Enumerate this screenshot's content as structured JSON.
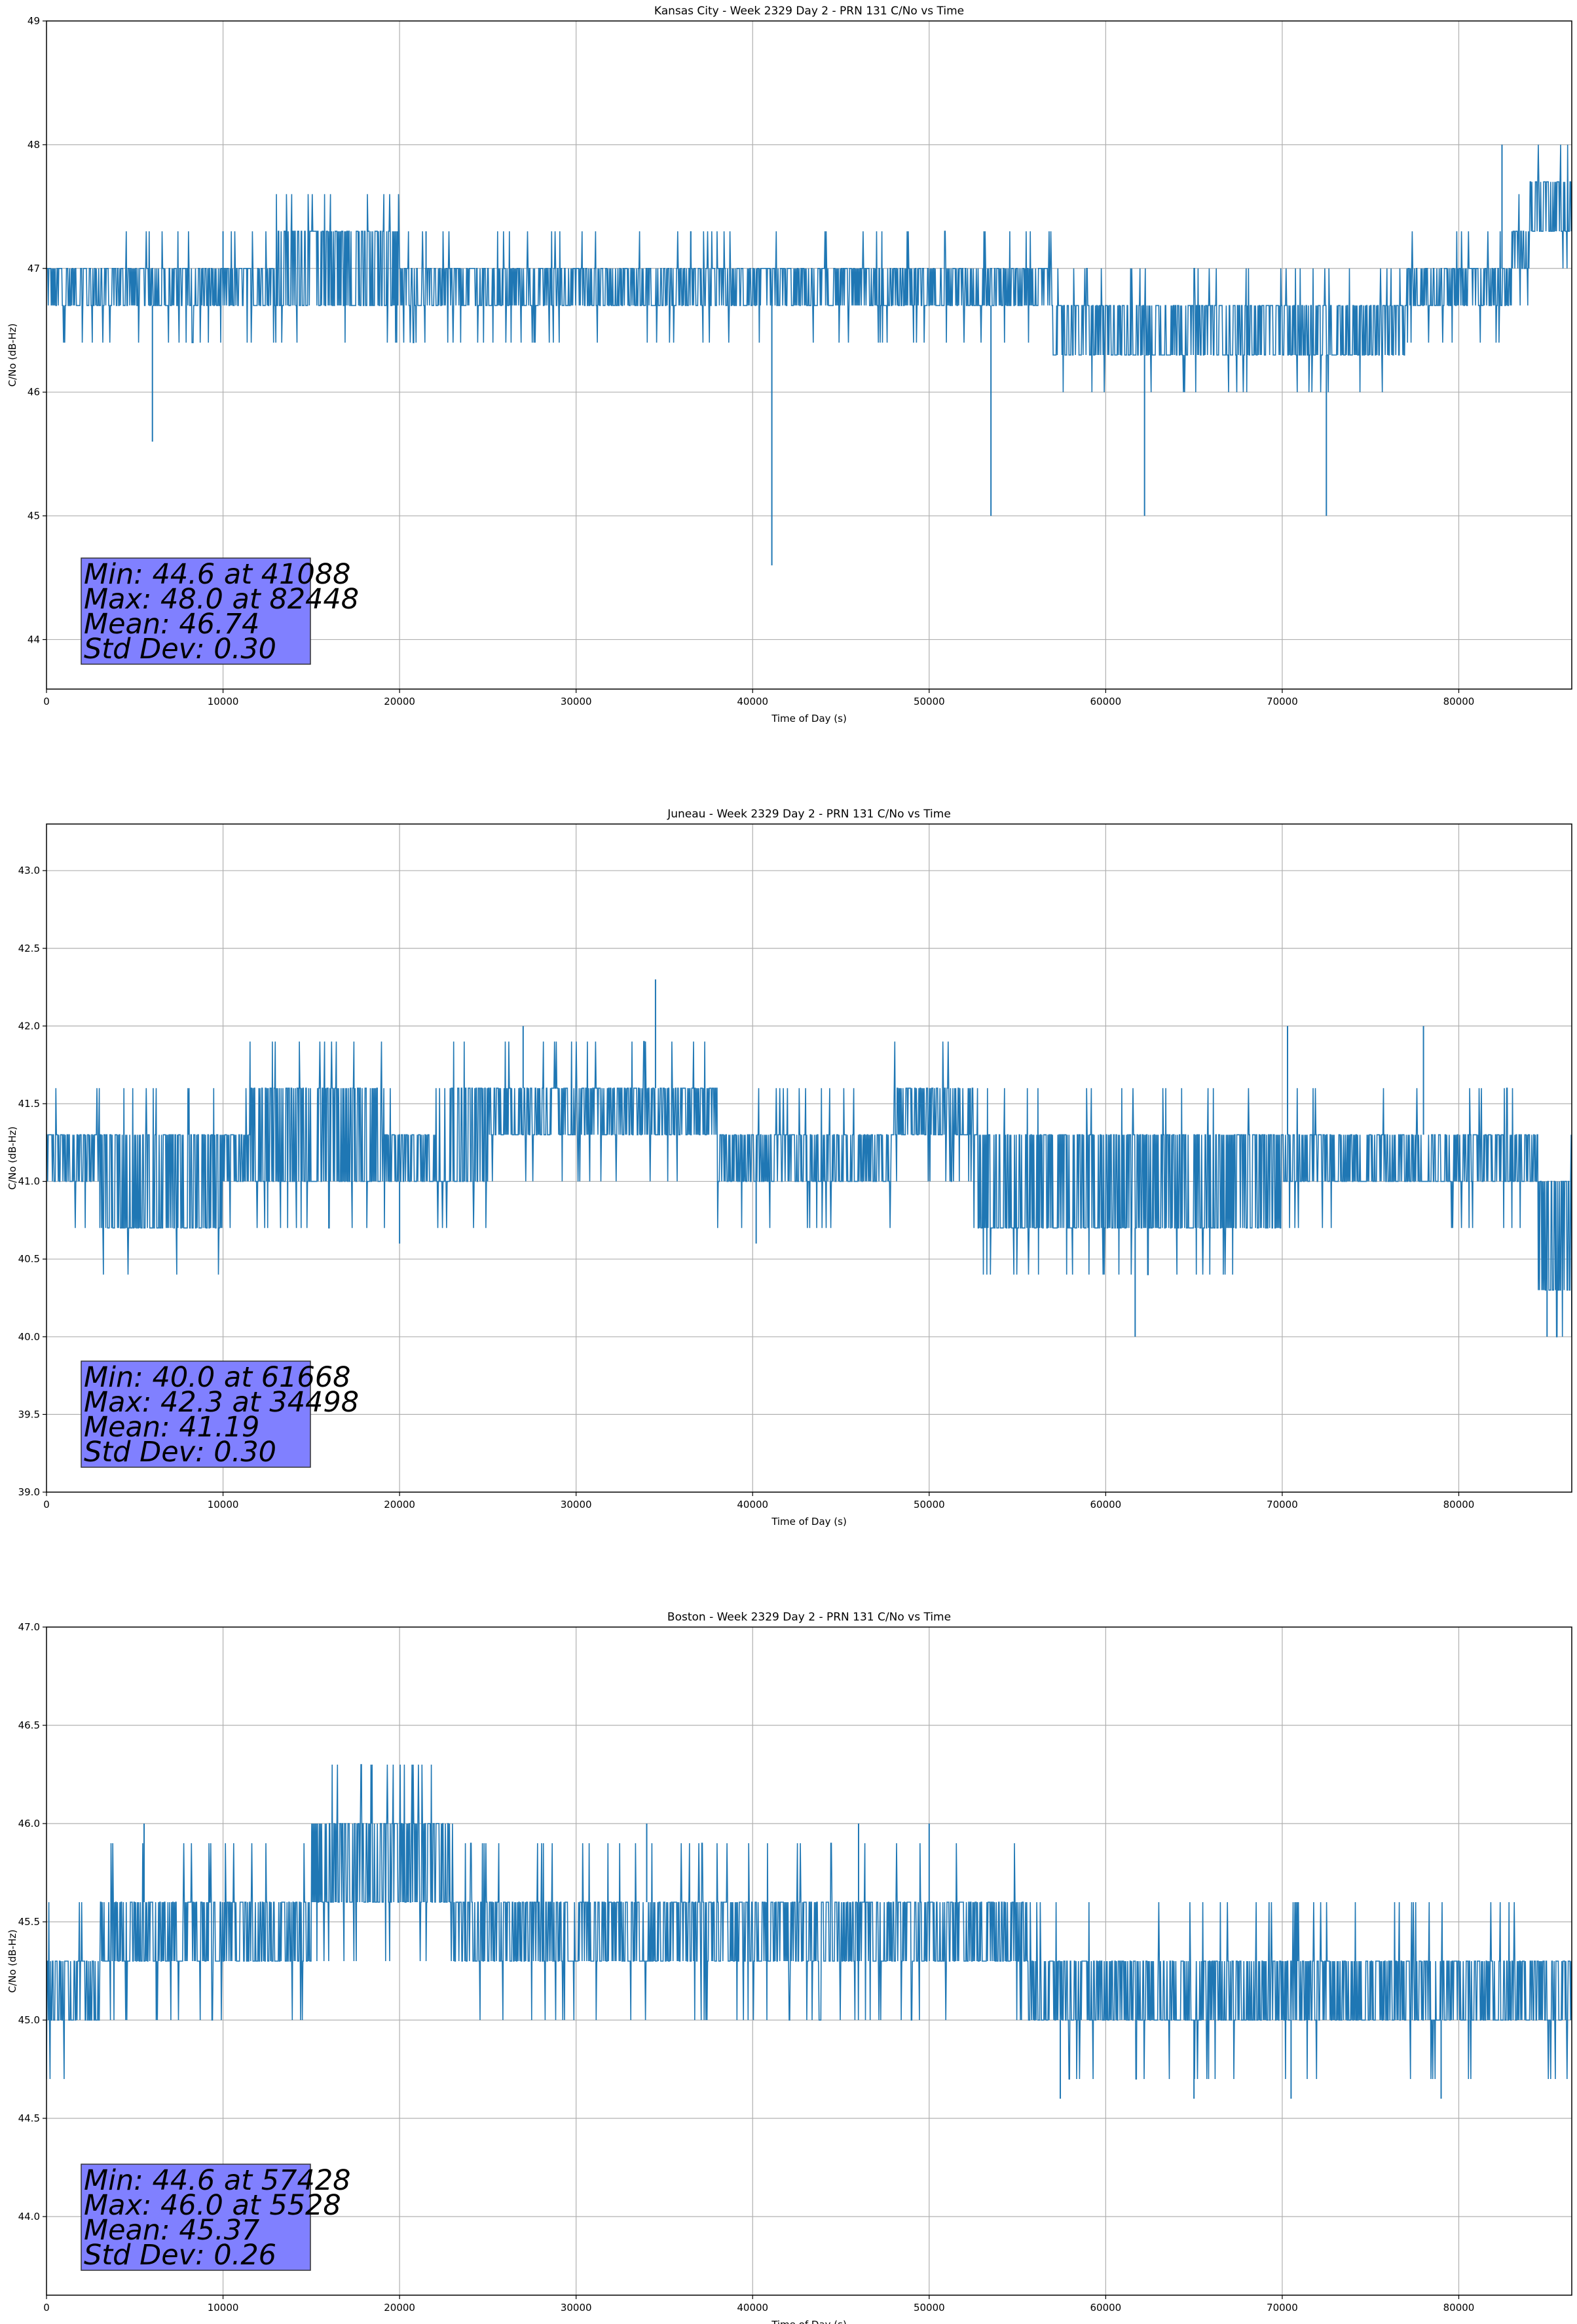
{
  "chart_data": [
    {
      "type": "line",
      "title": "Kansas City - Week 2329 Day 2 - PRN 131 C/No vs Time",
      "xlabel": "Time of Day (s)",
      "ylabel": "C/No (dB-Hz)",
      "xlim": [
        0,
        86400
      ],
      "ylim": [
        43.6,
        49
      ],
      "xticks": [
        0,
        10000,
        20000,
        30000,
        40000,
        50000,
        60000,
        70000,
        80000
      ],
      "yticks": [
        44,
        45,
        46,
        47,
        48,
        49
      ],
      "ytick_labels": [
        "44",
        "45",
        "46",
        "47",
        "48",
        "49"
      ],
      "grid": true,
      "line_color": "#1f77b4",
      "series": [
        {
          "x": [
            0,
            5000,
            6000,
            10000,
            13000,
            15000,
            20000,
            22000,
            25000,
            30000,
            35000,
            38000,
            41000,
            41100,
            45000,
            50000,
            53500,
            55000,
            57000,
            60000,
            62000,
            65000,
            70000,
            72500,
            75000,
            77000,
            80000,
            82000,
            83000,
            84000,
            86400
          ],
          "band": [
            [
              46.7,
              47.0
            ],
            [
              46.7,
              47.0
            ],
            [
              46.7,
              47.0
            ],
            [
              46.7,
              47.0
            ],
            [
              46.7,
              47.3
            ],
            [
              46.7,
              47.3
            ],
            [
              46.7,
              47.0
            ],
            [
              46.7,
              47.0
            ],
            [
              46.7,
              47.0
            ],
            [
              46.7,
              47.0
            ],
            [
              46.7,
              47.0
            ],
            [
              46.7,
              47.0
            ],
            [
              46.7,
              47.0
            ],
            [
              46.7,
              47.0
            ],
            [
              46.7,
              47.0
            ],
            [
              46.7,
              47.0
            ],
            [
              46.7,
              47.0
            ],
            [
              46.7,
              47.0
            ],
            [
              46.3,
              46.7
            ],
            [
              46.3,
              46.7
            ],
            [
              46.3,
              46.7
            ],
            [
              46.3,
              46.7
            ],
            [
              46.3,
              46.7
            ],
            [
              46.3,
              46.7
            ],
            [
              46.3,
              46.7
            ],
            [
              46.7,
              47.0
            ],
            [
              46.7,
              47.0
            ],
            [
              46.7,
              47.0
            ],
            [
              47.0,
              47.3
            ],
            [
              47.3,
              47.7
            ],
            [
              47.3,
              47.7
            ]
          ]
        }
      ],
      "stats": {
        "min": "Min: 44.6 at 41088",
        "max": "Max: 48.0 at 82448",
        "mean": "Mean: 46.74",
        "std": "Std Dev: 0.30"
      },
      "spikes_down": [
        [
          6000,
          45.6
        ],
        [
          41088,
          44.6
        ],
        [
          53500,
          45.0
        ],
        [
          62200,
          45.0
        ],
        [
          72500,
          45.0
        ]
      ],
      "spikes_up": [
        [
          10000,
          47.3
        ],
        [
          21500,
          47.3
        ],
        [
          36500,
          47.3
        ],
        [
          82448,
          48.0
        ]
      ]
    },
    {
      "type": "line",
      "title": "Juneau - Week 2329 Day 2 - PRN 131 C/No vs Time",
      "xlabel": "Time of Day (s)",
      "ylabel": "C/No (dB-Hz)",
      "xlim": [
        0,
        86400
      ],
      "ylim": [
        39.0,
        43.3
      ],
      "xticks": [
        0,
        10000,
        20000,
        30000,
        40000,
        50000,
        60000,
        70000,
        80000
      ],
      "yticks": [
        39.0,
        39.5,
        40.0,
        40.5,
        41.0,
        41.5,
        42.0,
        42.5,
        43.0
      ],
      "ytick_labels": [
        "39.0",
        "39.5",
        "40.0",
        "40.5",
        "41.0",
        "41.5",
        "42.0",
        "42.5",
        "43.0"
      ],
      "grid": true,
      "line_color": "#1f77b4",
      "series": [
        {
          "x": [
            0,
            3000,
            9000,
            10000,
            11500,
            15000,
            19000,
            22000,
            25000,
            30000,
            34500,
            38000,
            40000,
            45000,
            48000,
            50000,
            52000,
            52500,
            55000,
            60000,
            65000,
            70000,
            75000,
            80000,
            83500,
            84500,
            86400
          ],
          "band": [
            [
              41.0,
              41.3
            ],
            [
              40.7,
              41.3
            ],
            [
              40.7,
              41.3
            ],
            [
              41.0,
              41.3
            ],
            [
              41.0,
              41.6
            ],
            [
              41.0,
              41.6
            ],
            [
              41.0,
              41.3
            ],
            [
              41.0,
              41.6
            ],
            [
              41.3,
              41.6
            ],
            [
              41.3,
              41.6
            ],
            [
              41.3,
              41.6
            ],
            [
              41.0,
              41.3
            ],
            [
              41.0,
              41.3
            ],
            [
              41.0,
              41.3
            ],
            [
              41.3,
              41.6
            ],
            [
              41.3,
              41.6
            ],
            [
              41.3,
              41.6
            ],
            [
              40.7,
              41.3
            ],
            [
              40.7,
              41.3
            ],
            [
              40.7,
              41.3
            ],
            [
              40.7,
              41.3
            ],
            [
              41.0,
              41.3
            ],
            [
              41.0,
              41.3
            ],
            [
              41.0,
              41.3
            ],
            [
              41.0,
              41.3
            ],
            [
              40.3,
              41.0
            ],
            [
              40.3,
              41.0
            ]
          ]
        }
      ],
      "stats": {
        "min": "Min: 40.0 at 61668",
        "max": "Max: 42.3 at 34498",
        "mean": "Mean: 41.19",
        "std": "Std Dev: 0.30"
      },
      "spikes_down": [
        [
          20000,
          40.6
        ],
        [
          40200,
          40.6
        ],
        [
          61668,
          40.0
        ],
        [
          85000,
          40.0
        ]
      ],
      "spikes_up": [
        [
          34498,
          42.3
        ],
        [
          27000,
          42.0
        ],
        [
          70300,
          42.0
        ],
        [
          78000,
          42.0
        ]
      ]
    },
    {
      "type": "line",
      "title": "Boston - Week 2329 Day 2 - PRN 131 C/No vs Time",
      "xlabel": "Time of Day (s)",
      "ylabel": "C/No (dB-Hz)",
      "xlim": [
        0,
        86400
      ],
      "ylim": [
        43.6,
        47.0
      ],
      "xticks": [
        0,
        10000,
        20000,
        30000,
        40000,
        50000,
        60000,
        70000,
        80000
      ],
      "yticks": [
        44.0,
        44.5,
        45.0,
        45.5,
        46.0,
        46.5,
        47.0
      ],
      "ytick_labels": [
        "44.0",
        "44.5",
        "45.0",
        "45.5",
        "46.0",
        "46.5",
        "47.0"
      ],
      "grid": true,
      "line_color": "#1f77b4",
      "series": [
        {
          "x": [
            0,
            2000,
            3000,
            10000,
            14000,
            15000,
            20000,
            23000,
            25000,
            30000,
            35000,
            40000,
            45000,
            50000,
            55000,
            55500,
            60000,
            65000,
            70000,
            75000,
            80000,
            86400
          ],
          "band": [
            [
              45.0,
              45.3
            ],
            [
              45.0,
              45.3
            ],
            [
              45.3,
              45.6
            ],
            [
              45.3,
              45.6
            ],
            [
              45.3,
              45.6
            ],
            [
              45.6,
              46.0
            ],
            [
              45.6,
              46.0
            ],
            [
              45.3,
              45.6
            ],
            [
              45.3,
              45.6
            ],
            [
              45.3,
              45.6
            ],
            [
              45.3,
              45.6
            ],
            [
              45.3,
              45.6
            ],
            [
              45.3,
              45.6
            ],
            [
              45.3,
              45.6
            ],
            [
              45.3,
              45.6
            ],
            [
              45.0,
              45.3
            ],
            [
              45.0,
              45.3
            ],
            [
              45.0,
              45.3
            ],
            [
              45.0,
              45.3
            ],
            [
              45.0,
              45.3
            ],
            [
              45.0,
              45.3
            ],
            [
              45.0,
              45.3
            ]
          ]
        }
      ],
      "stats": {
        "min": "Min: 44.6 at 57428",
        "max": "Max: 46.0 at 5528",
        "mean": "Mean: 45.37",
        "std": "Std Dev: 0.26"
      },
      "spikes_down": [
        [
          57428,
          44.6
        ],
        [
          65000,
          44.6
        ],
        [
          70500,
          44.6
        ],
        [
          79000,
          44.6
        ]
      ],
      "spikes_up": [
        [
          5528,
          46.0
        ],
        [
          34000,
          46.0
        ],
        [
          46000,
          46.0
        ],
        [
          50000,
          46.0
        ]
      ]
    }
  ]
}
